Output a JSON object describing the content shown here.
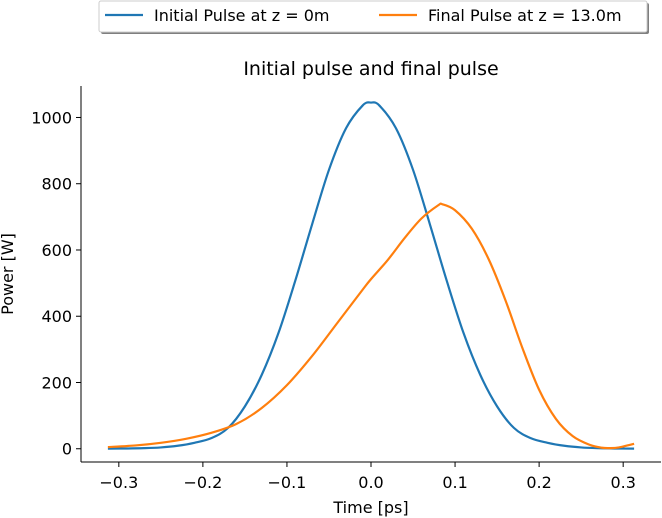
{
  "chart_data": {
    "type": "line",
    "title": "Initial pulse and final pulse",
    "xlabel": "Time [ps]",
    "ylabel": "Power [W]",
    "xlim": [
      -0.345,
      0.345
    ],
    "ylim": [
      -40,
      1095
    ],
    "xticks": [
      -0.3,
      -0.2,
      -0.1,
      0.0,
      0.1,
      0.2,
      0.3
    ],
    "xtick_labels": [
      "−0.3",
      "−0.2",
      "−0.1",
      "0.0",
      "0.1",
      "0.2",
      "0.3"
    ],
    "yticks": [
      0,
      200,
      400,
      600,
      800,
      1000
    ],
    "ytick_labels": [
      "0",
      "200",
      "400",
      "600",
      "800",
      "1000"
    ],
    "grid": false,
    "legend_position": "top",
    "series": [
      {
        "name": "Initial Pulse at z = 0m",
        "color": "#1f77b4",
        "x": [
          -0.313,
          -0.29,
          -0.27,
          -0.25,
          -0.23,
          -0.21,
          -0.19,
          -0.17,
          -0.15,
          -0.13,
          -0.11,
          -0.09,
          -0.07,
          -0.05,
          -0.03,
          -0.01,
          0.0,
          0.01,
          0.03,
          0.05,
          0.07,
          0.09,
          0.11,
          0.13,
          0.15,
          0.17,
          0.19,
          0.21,
          0.23,
          0.25,
          0.27,
          0.29,
          0.313
        ],
        "y": [
          0.3,
          0.8,
          1.8,
          4,
          9,
          18,
          32,
          63,
          128,
          223,
          350,
          508,
          678,
          842,
          966,
          1036,
          1045,
          1036,
          966,
          842,
          678,
          508,
          350,
          223,
          128,
          63,
          32,
          18,
          9,
          4,
          1.8,
          0.8,
          0.3
        ]
      },
      {
        "name": "Final Pulse at z = 13.0m",
        "color": "#ff7f0e",
        "x": [
          -0.313,
          -0.28,
          -0.25,
          -0.22,
          -0.19,
          -0.16,
          -0.13,
          -0.1,
          -0.07,
          -0.04,
          -0.01,
          0.0,
          0.02,
          0.04,
          0.06,
          0.08,
          0.085,
          0.1,
          0.12,
          0.14,
          0.16,
          0.18,
          0.2,
          0.22,
          0.24,
          0.26,
          0.275,
          0.285,
          0.295,
          0.305,
          0.313
        ],
        "y": [
          5,
          10,
          18,
          30,
          48,
          75,
          123,
          192,
          280,
          380,
          480,
          512,
          570,
          636,
          695,
          735,
          738,
          720,
          664,
          572,
          448,
          305,
          178,
          90,
          38,
          12,
          3,
          2,
          4,
          10,
          15
        ]
      }
    ]
  }
}
